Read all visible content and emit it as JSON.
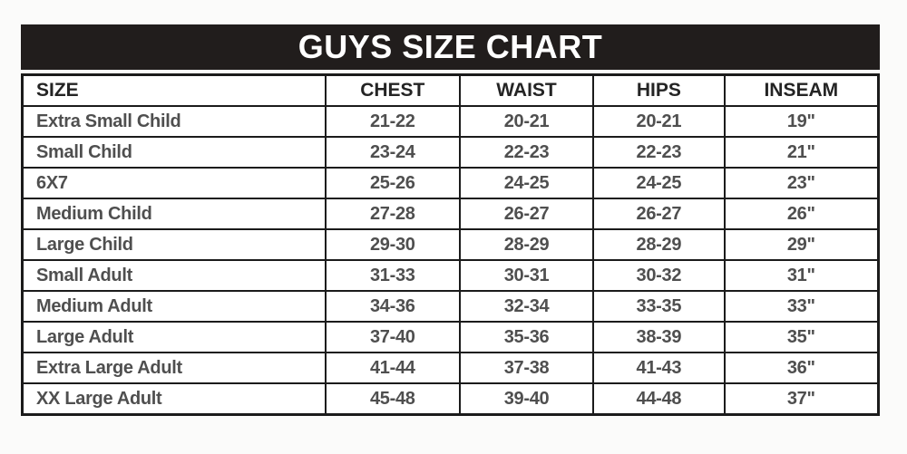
{
  "title": "GUYS SIZE CHART",
  "chart_data": {
    "type": "table",
    "title": "GUYS SIZE CHART",
    "columns": [
      "SIZE",
      "CHEST",
      "WAIST",
      "HIPS",
      "INSEAM"
    ],
    "rows": [
      [
        "Extra Small Child",
        "21-22",
        "20-21",
        "20-21",
        "19\""
      ],
      [
        "Small Child",
        "23-24",
        "22-23",
        "22-23",
        "21\""
      ],
      [
        "6X7",
        "25-26",
        "24-25",
        "24-25",
        "23\""
      ],
      [
        "Medium Child",
        "27-28",
        "26-27",
        "26-27",
        "26\""
      ],
      [
        "Large Child",
        "29-30",
        "28-29",
        "28-29",
        "29\""
      ],
      [
        "Small Adult",
        "31-33",
        "30-31",
        "30-32",
        "31\""
      ],
      [
        "Medium Adult",
        "34-36",
        "32-34",
        "33-35",
        "33\""
      ],
      [
        "Large Adult",
        "37-40",
        "35-36",
        "38-39",
        "35\""
      ],
      [
        "Extra Large Adult",
        "41-44",
        "37-38",
        "41-43",
        "36\""
      ],
      [
        "XX Large Adult",
        "45-48",
        "39-40",
        "44-48",
        "37\""
      ]
    ]
  },
  "colors": {
    "title_bar_bg": "#211d1c",
    "title_text": "#ffffff",
    "table_border": "#1b1b1b",
    "header_text": "#242424",
    "cell_text": "#4f4f4f",
    "page_bg": "#fbfbfa"
  }
}
